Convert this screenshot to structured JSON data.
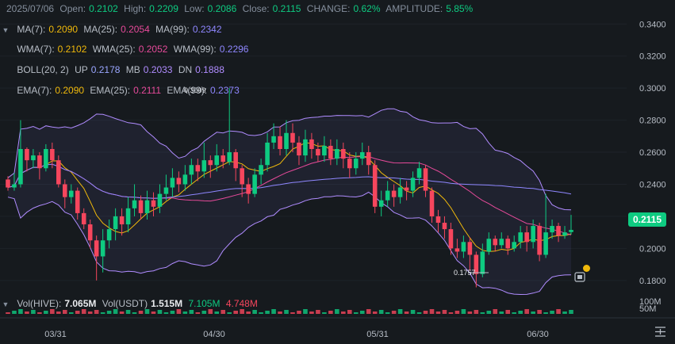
{
  "header": {
    "date": "2025/07/06",
    "open_label": "Open:",
    "open": "0.2102",
    "high_label": "High:",
    "high": "0.2209",
    "low_label": "Low:",
    "low": "0.2086",
    "close_label": "Close:",
    "close": "0.2115",
    "change_label": "CHANGE:",
    "change": "0.62%",
    "amplitude_label": "AMPLITUDE:",
    "amplitude": "5.85%"
  },
  "indicators": {
    "ma": {
      "l7": "MA(7):",
      "v7": "0.2090",
      "l25": "MA(25):",
      "v25": "0.2054",
      "l99": "MA(99):",
      "v99": "0.2342"
    },
    "wma": {
      "l7": "WMA(7):",
      "v7": "0.2102",
      "l25": "WMA(25):",
      "v25": "0.2052",
      "l99": "WMA(99):",
      "v99": "0.2296"
    },
    "boll": {
      "l": "BOLL(20, 2)",
      "up_l": "UP",
      "up": "0.2178",
      "mb_l": "MB",
      "mb": "0.2033",
      "dn_l": "DN",
      "dn": "0.1888"
    },
    "ema": {
      "l7": "EMA(7):",
      "v7": "0.2090",
      "l25": "EMA(25):",
      "v25": "0.2111",
      "l99": "EMA(99):",
      "v99": "0.2373"
    }
  },
  "volume": {
    "hive_label": "Vol(HIVE):",
    "hive": "7.065M",
    "usdt_label": "Vol(USDT)",
    "usdt1": "1.515M",
    "usdt2": "7.105M",
    "usdt3": "4.748M"
  },
  "price_tag": "0.2115",
  "annotations": {
    "high": "0.3009",
    "low": "0.1757"
  },
  "colors": {
    "up": "#0ecb81",
    "down": "#f6465d",
    "background": "#161a1e",
    "ma7": "#f0b90b",
    "ma25": "#e64a9a",
    "ma99": "#8f87ff"
  },
  "chart_data": {
    "type": "candlestick",
    "y_ticks": [
      "0.3400",
      "0.3200",
      "0.3000",
      "0.2800",
      "0.2600",
      "0.2400",
      "0.2200",
      "0.2000",
      "0.1800"
    ],
    "ylim": [
      0.172,
      0.352
    ],
    "x_ticks": [
      "03/31",
      "04/30",
      "05/31",
      "06/30"
    ],
    "volume_ticks": [
      "100M",
      "50M"
    ],
    "candles": [
      [
        0.243,
        0.238,
        0.245,
        0.236
      ],
      [
        0.238,
        0.24,
        0.247,
        0.236
      ],
      [
        0.24,
        0.262,
        0.28,
        0.238
      ],
      [
        0.262,
        0.255,
        0.263,
        0.248
      ],
      [
        0.255,
        0.258,
        0.262,
        0.25
      ],
      [
        0.258,
        0.25,
        0.26,
        0.243
      ],
      [
        0.25,
        0.262,
        0.265,
        0.248
      ],
      [
        0.262,
        0.255,
        0.266,
        0.25
      ],
      [
        0.255,
        0.24,
        0.258,
        0.238
      ],
      [
        0.24,
        0.232,
        0.243,
        0.225
      ],
      [
        0.232,
        0.236,
        0.24,
        0.228
      ],
      [
        0.236,
        0.222,
        0.238,
        0.218
      ],
      [
        0.222,
        0.215,
        0.225,
        0.212
      ],
      [
        0.215,
        0.205,
        0.218,
        0.2
      ],
      [
        0.205,
        0.195,
        0.208,
        0.18
      ],
      [
        0.195,
        0.205,
        0.212,
        0.185
      ],
      [
        0.205,
        0.212,
        0.218,
        0.2
      ],
      [
        0.212,
        0.22,
        0.225,
        0.205
      ],
      [
        0.22,
        0.215,
        0.225,
        0.208
      ],
      [
        0.215,
        0.225,
        0.232,
        0.21
      ],
      [
        0.225,
        0.23,
        0.24,
        0.22
      ],
      [
        0.23,
        0.222,
        0.233,
        0.218
      ],
      [
        0.222,
        0.23,
        0.236,
        0.218
      ],
      [
        0.23,
        0.226,
        0.235,
        0.22
      ],
      [
        0.226,
        0.234,
        0.24,
        0.222
      ],
      [
        0.234,
        0.238,
        0.246,
        0.23
      ],
      [
        0.238,
        0.244,
        0.25,
        0.232
      ],
      [
        0.244,
        0.24,
        0.248,
        0.235
      ],
      [
        0.24,
        0.246,
        0.252,
        0.236
      ],
      [
        0.246,
        0.252,
        0.256,
        0.24
      ],
      [
        0.252,
        0.248,
        0.256,
        0.242
      ],
      [
        0.248,
        0.255,
        0.266,
        0.244
      ],
      [
        0.255,
        0.252,
        0.258,
        0.244
      ],
      [
        0.252,
        0.258,
        0.265,
        0.248
      ],
      [
        0.258,
        0.254,
        0.262,
        0.25
      ],
      [
        0.254,
        0.26,
        0.3,
        0.252
      ],
      [
        0.26,
        0.25,
        0.262,
        0.242
      ],
      [
        0.25,
        0.24,
        0.252,
        0.232
      ],
      [
        0.24,
        0.234,
        0.244,
        0.228
      ],
      [
        0.234,
        0.246,
        0.25,
        0.232
      ],
      [
        0.246,
        0.252,
        0.256,
        0.24
      ],
      [
        0.252,
        0.266,
        0.272,
        0.248
      ],
      [
        0.266,
        0.27,
        0.278,
        0.262
      ],
      [
        0.27,
        0.262,
        0.276,
        0.258
      ],
      [
        0.262,
        0.272,
        0.28,
        0.258
      ],
      [
        0.272,
        0.266,
        0.278,
        0.26
      ],
      [
        0.266,
        0.258,
        0.27,
        0.252
      ],
      [
        0.258,
        0.268,
        0.274,
        0.254
      ],
      [
        0.268,
        0.262,
        0.272,
        0.256
      ],
      [
        0.262,
        0.258,
        0.266,
        0.254
      ],
      [
        0.258,
        0.264,
        0.27,
        0.254
      ],
      [
        0.264,
        0.256,
        0.268,
        0.252
      ],
      [
        0.256,
        0.262,
        0.268,
        0.252
      ],
      [
        0.262,
        0.256,
        0.266,
        0.25
      ],
      [
        0.256,
        0.25,
        0.26,
        0.244
      ],
      [
        0.25,
        0.256,
        0.26,
        0.246
      ],
      [
        0.256,
        0.26,
        0.266,
        0.252
      ],
      [
        0.26,
        0.252,
        0.264,
        0.246
      ],
      [
        0.252,
        0.226,
        0.255,
        0.222
      ],
      [
        0.226,
        0.23,
        0.236,
        0.22
      ],
      [
        0.23,
        0.236,
        0.242,
        0.226
      ],
      [
        0.236,
        0.232,
        0.24,
        0.226
      ],
      [
        0.232,
        0.238,
        0.244,
        0.228
      ],
      [
        0.238,
        0.236,
        0.242,
        0.23
      ],
      [
        0.236,
        0.244,
        0.248,
        0.232
      ],
      [
        0.244,
        0.25,
        0.254,
        0.24
      ],
      [
        0.25,
        0.236,
        0.252,
        0.232
      ],
      [
        0.236,
        0.22,
        0.238,
        0.216
      ],
      [
        0.22,
        0.216,
        0.224,
        0.21
      ],
      [
        0.216,
        0.212,
        0.22,
        0.206
      ],
      [
        0.212,
        0.2,
        0.216,
        0.196
      ],
      [
        0.2,
        0.198,
        0.206,
        0.194
      ],
      [
        0.198,
        0.204,
        0.208,
        0.194
      ],
      [
        0.204,
        0.196,
        0.207,
        0.186
      ],
      [
        0.196,
        0.184,
        0.198,
        0.1757
      ],
      [
        0.184,
        0.198,
        0.203,
        0.182
      ],
      [
        0.198,
        0.206,
        0.21,
        0.196
      ],
      [
        0.206,
        0.202,
        0.208,
        0.198
      ],
      [
        0.202,
        0.206,
        0.21,
        0.2
      ],
      [
        0.206,
        0.2,
        0.208,
        0.196
      ],
      [
        0.2,
        0.204,
        0.208,
        0.198
      ],
      [
        0.204,
        0.21,
        0.214,
        0.2
      ],
      [
        0.21,
        0.204,
        0.214,
        0.198
      ],
      [
        0.204,
        0.214,
        0.218,
        0.2
      ],
      [
        0.214,
        0.196,
        0.216,
        0.192
      ],
      [
        0.196,
        0.21,
        0.234,
        0.194
      ],
      [
        0.21,
        0.214,
        0.218,
        0.206
      ],
      [
        0.214,
        0.208,
        0.216,
        0.204
      ],
      [
        0.208,
        0.21,
        0.214,
        0.206
      ],
      [
        0.2102,
        0.2115,
        0.2209,
        0.2086
      ]
    ],
    "series": [
      {
        "name": "MA(7)",
        "color": "#f0b90b"
      },
      {
        "name": "MA(25)",
        "color": "#e64a9a"
      },
      {
        "name": "MA(99)",
        "color": "#8f87ff"
      }
    ]
  }
}
